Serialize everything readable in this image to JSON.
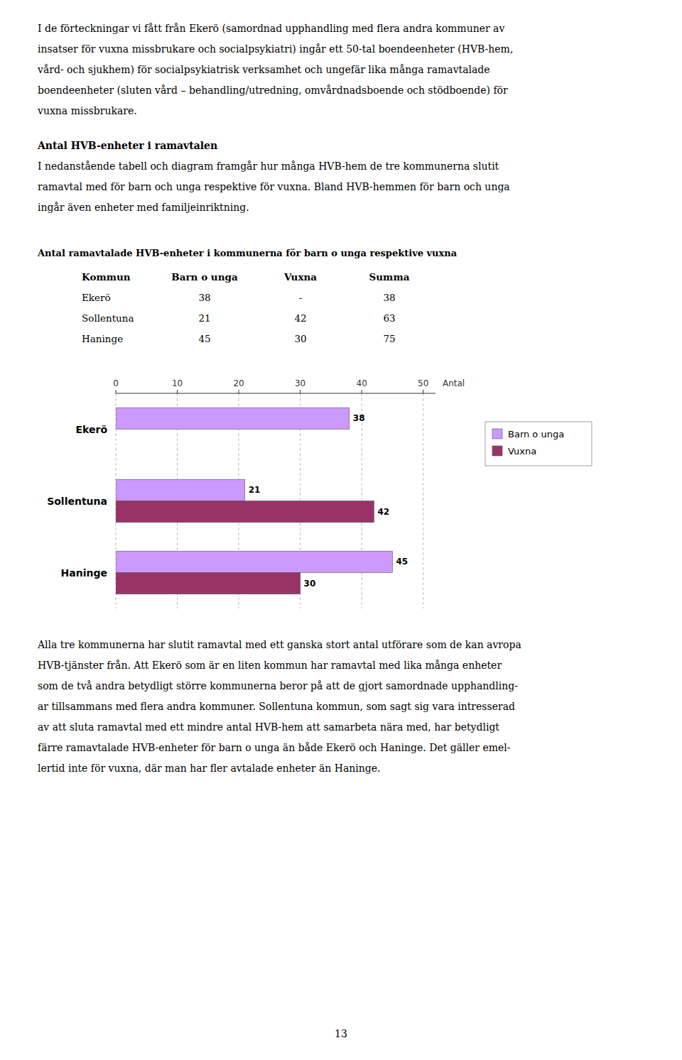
{
  "page": {
    "paragraph1_lines": [
      "I de förteckningar vi fått från Ekerö (samordnad upphandling med flera andra kommuner av",
      "insatser för vuxna missbrukare och socialpsykiatri) ingår ett 50-tal boendeenheter (HVB-hem,",
      "vård- och sjukhem) för socialpsykiatrisk verksamhet och ungefär lika många ramavtalade",
      "boendeenheter (sluten vård – behandling/utredning, omvårdnadsboende och stödboende) för",
      "vuxna missbrukare."
    ],
    "section_title": "Antal HVB-enheter i ramavtalen",
    "paragraph2_lines": [
      "I nedanstående tabell och diagram framgår hur många HVB-hem de tre kommunerna slutit",
      "ramavtal med för barn och unga respektive för vuxna. Bland HVB-hemmen för barn och unga",
      "ingår även enheter med familjeinriktning."
    ],
    "table_title": "Antal ramavtalade HVB-enheter i kommunerna för barn o unga respektive vuxna",
    "table_headers": [
      "Kommun",
      "Barn o unga",
      "Vuxna",
      "Summa"
    ],
    "table_rows": [
      [
        "Ekerö",
        "38",
        "-",
        "38"
      ],
      [
        "Sollentuna",
        "21",
        "42",
        "63"
      ],
      [
        "Haninge",
        "45",
        "30",
        "75"
      ]
    ],
    "paragraph3_lines": [
      "Alla tre kommunerna har slutit ramavtal med ett ganska stort antal utförare som de kan avropa",
      "HVB-tjänster från. Att Ekerö som är en liten kommun har ramavtal med lika många enheter",
      "som de två andra betydligt större kommunerna beror på att de gjort samordnade upphandling-",
      "ar tillsammans med flera andra kommuner. Sollentuna kommun, som sagt sig vara intresserad",
      "av att sluta ramavtal med ett mindre antal HVB-hem att samarbeta nära med, har betydligt",
      "färre ramavtalade HVB-enheter för barn o unga än både Ekerö och Haninge. Det gäller emel-",
      "lertid inte för vuxna, där man har fler avtalade enheter än Haninge."
    ],
    "page_number": "13"
  },
  "chart_data": {
    "type": "bar",
    "orientation": "horizontal",
    "categories": [
      "Ekerö",
      "Sollentuna",
      "Haninge"
    ],
    "series": [
      {
        "name": "Barn o unga",
        "color": "#cc99ff",
        "values": [
          38,
          21,
          45
        ]
      },
      {
        "name": "Vuxna",
        "color": "#993366",
        "values": [
          null,
          42,
          30
        ]
      }
    ],
    "x_label": "Antal",
    "xlim": [
      0,
      52
    ],
    "xticks": [
      0,
      10,
      20,
      30,
      40,
      50
    ],
    "grid": true,
    "legend": "right",
    "data_labels": true
  }
}
